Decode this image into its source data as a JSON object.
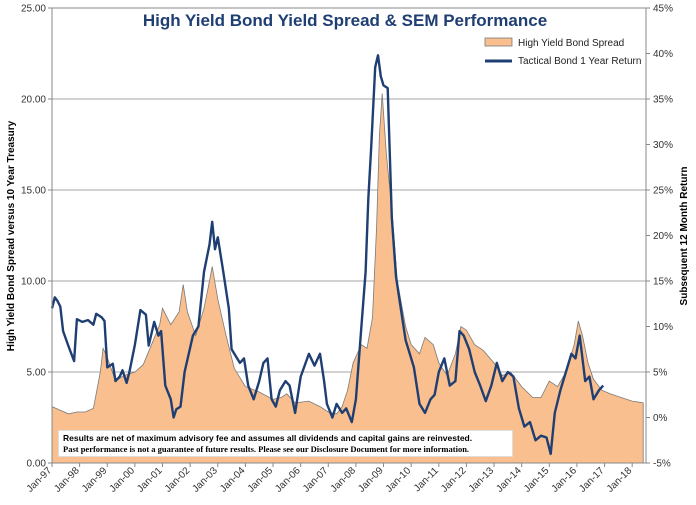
{
  "chart_data": {
    "type": "area+line",
    "title": "High Yield Bond Yield Spread & SEM Performance",
    "ylabel_left": "High Yield Bond Spread versus 10 Year Treasury",
    "ylabel_right": "Subsequent 12 Month Return",
    "ylim_left": [
      0,
      25
    ],
    "ylim_right": [
      -5,
      45
    ],
    "left_ticks": [
      "0.00",
      "5.00",
      "10.00",
      "15.00",
      "20.00",
      "25.00"
    ],
    "right_ticks": [
      "-5%",
      "0%",
      "5%",
      "10%",
      "15%",
      "20%",
      "25%",
      "30%",
      "35%",
      "40%",
      "45%"
    ],
    "x_ticks": [
      "Jan-97",
      "Jan-98",
      "Jan-99",
      "Jan-00",
      "Jan-01",
      "Jan-02",
      "Jan-03",
      "Jan-04",
      "Jan-05",
      "Jan-06",
      "Jan-07",
      "Jan-08",
      "Jan-09",
      "Jan-10",
      "Jan-11",
      "Jan-12",
      "Jan-13",
      "Jan-14",
      "Jan-15",
      "Jan-16",
      "Jan-17",
      "Jan-18"
    ],
    "x_range": [
      1997.0,
      2018.5
    ],
    "legend_position": "top-right",
    "series": [
      {
        "name": "High Yield Bond Spread",
        "kind": "area",
        "axis": "left",
        "color": "#f9bf8f",
        "edge_color": "#7a7a7a",
        "points": [
          [
            1997.0,
            3.1
          ],
          [
            1997.3,
            2.9
          ],
          [
            1997.6,
            2.7
          ],
          [
            1997.9,
            2.8
          ],
          [
            1998.2,
            2.8
          ],
          [
            1998.5,
            3.0
          ],
          [
            1998.75,
            5.0
          ],
          [
            1998.85,
            6.3
          ],
          [
            1999.0,
            5.8
          ],
          [
            1999.3,
            4.5
          ],
          [
            1999.6,
            4.8
          ],
          [
            2000.0,
            5.0
          ],
          [
            2000.3,
            5.4
          ],
          [
            2000.6,
            6.5
          ],
          [
            2000.9,
            7.6
          ],
          [
            2001.0,
            8.5
          ],
          [
            2001.3,
            7.6
          ],
          [
            2001.6,
            8.3
          ],
          [
            2001.75,
            9.8
          ],
          [
            2001.9,
            8.3
          ],
          [
            2002.2,
            7.0
          ],
          [
            2002.5,
            8.5
          ],
          [
            2002.7,
            10.0
          ],
          [
            2002.8,
            10.8
          ],
          [
            2003.0,
            9.0
          ],
          [
            2003.3,
            7.0
          ],
          [
            2003.6,
            5.2
          ],
          [
            2004.0,
            4.2
          ],
          [
            2004.5,
            3.9
          ],
          [
            2005.0,
            3.5
          ],
          [
            2005.3,
            3.6
          ],
          [
            2005.5,
            3.8
          ],
          [
            2005.8,
            3.3
          ],
          [
            2006.3,
            3.4
          ],
          [
            2006.7,
            3.1
          ],
          [
            2007.0,
            2.8
          ],
          [
            2007.3,
            2.7
          ],
          [
            2007.5,
            3.1
          ],
          [
            2007.7,
            4.0
          ],
          [
            2007.9,
            5.5
          ],
          [
            2008.2,
            6.5
          ],
          [
            2008.4,
            6.3
          ],
          [
            2008.6,
            8.0
          ],
          [
            2008.75,
            13.0
          ],
          [
            2008.85,
            18.0
          ],
          [
            2008.95,
            20.3
          ],
          [
            2009.1,
            17.0
          ],
          [
            2009.3,
            14.0
          ],
          [
            2009.5,
            10.0
          ],
          [
            2009.8,
            7.5
          ],
          [
            2010.0,
            6.5
          ],
          [
            2010.3,
            6.0
          ],
          [
            2010.5,
            6.9
          ],
          [
            2010.8,
            6.5
          ],
          [
            2011.0,
            5.5
          ],
          [
            2011.3,
            4.8
          ],
          [
            2011.6,
            6.0
          ],
          [
            2011.8,
            7.5
          ],
          [
            2012.0,
            7.3
          ],
          [
            2012.3,
            6.5
          ],
          [
            2012.6,
            6.2
          ],
          [
            2013.0,
            5.5
          ],
          [
            2013.3,
            4.8
          ],
          [
            2013.6,
            5.0
          ],
          [
            2014.0,
            4.2
          ],
          [
            2014.4,
            3.6
          ],
          [
            2014.7,
            3.6
          ],
          [
            2015.0,
            4.5
          ],
          [
            2015.3,
            4.2
          ],
          [
            2015.6,
            5.0
          ],
          [
            2015.9,
            6.5
          ],
          [
            2016.05,
            7.8
          ],
          [
            2016.2,
            7.0
          ],
          [
            2016.4,
            5.5
          ],
          [
            2016.6,
            4.6
          ],
          [
            2016.9,
            4.0
          ],
          [
            2017.2,
            3.8
          ],
          [
            2017.6,
            3.6
          ],
          [
            2018.0,
            3.4
          ],
          [
            2018.4,
            3.3
          ]
        ]
      },
      {
        "name": "Tactical Bond 1 Year Return",
        "kind": "line",
        "axis": "right",
        "color": "#1f3f73",
        "points": [
          [
            1997.0,
            12.0
          ],
          [
            1997.1,
            13.2
          ],
          [
            1997.2,
            12.8
          ],
          [
            1997.3,
            12.2
          ],
          [
            1997.4,
            9.5
          ],
          [
            1997.6,
            7.8
          ],
          [
            1997.8,
            6.2
          ],
          [
            1997.9,
            10.8
          ],
          [
            1998.1,
            10.5
          ],
          [
            1998.3,
            10.7
          ],
          [
            1998.5,
            10.2
          ],
          [
            1998.6,
            11.4
          ],
          [
            1998.8,
            11.0
          ],
          [
            1998.9,
            10.6
          ],
          [
            1999.0,
            5.5
          ],
          [
            1999.2,
            5.9
          ],
          [
            1999.3,
            4.0
          ],
          [
            1999.45,
            4.5
          ],
          [
            1999.55,
            5.2
          ],
          [
            1999.7,
            3.8
          ],
          [
            1999.8,
            5.0
          ],
          [
            2000.0,
            8.0
          ],
          [
            2000.2,
            11.8
          ],
          [
            2000.4,
            11.3
          ],
          [
            2000.5,
            7.9
          ],
          [
            2000.7,
            10.5
          ],
          [
            2000.85,
            9.0
          ],
          [
            2000.95,
            9.5
          ],
          [
            2001.1,
            3.5
          ],
          [
            2001.3,
            2.0
          ],
          [
            2001.4,
            0.0
          ],
          [
            2001.5,
            0.9
          ],
          [
            2001.65,
            1.2
          ],
          [
            2001.8,
            5.0
          ],
          [
            2002.1,
            9.0
          ],
          [
            2002.3,
            10.0
          ],
          [
            2002.5,
            16.0
          ],
          [
            2002.7,
            19.0
          ],
          [
            2002.8,
            21.5
          ],
          [
            2002.9,
            18.5
          ],
          [
            2003.0,
            19.8
          ],
          [
            2003.2,
            16.0
          ],
          [
            2003.4,
            12.0
          ],
          [
            2003.5,
            7.5
          ],
          [
            2003.8,
            6.0
          ],
          [
            2003.95,
            6.5
          ],
          [
            2004.1,
            3.5
          ],
          [
            2004.3,
            2.0
          ],
          [
            2004.5,
            4.0
          ],
          [
            2004.65,
            6.0
          ],
          [
            2004.8,
            6.5
          ],
          [
            2004.95,
            2.0
          ],
          [
            2005.1,
            1.2
          ],
          [
            2005.25,
            3.0
          ],
          [
            2005.45,
            4.0
          ],
          [
            2005.6,
            3.5
          ],
          [
            2005.8,
            0.5
          ],
          [
            2006.0,
            4.5
          ],
          [
            2006.3,
            7.0
          ],
          [
            2006.5,
            5.7
          ],
          [
            2006.7,
            7.0
          ],
          [
            2006.85,
            4.0
          ],
          [
            2006.95,
            1.5
          ],
          [
            2007.15,
            0.0
          ],
          [
            2007.3,
            1.5
          ],
          [
            2007.5,
            0.5
          ],
          [
            2007.65,
            1.0
          ],
          [
            2007.85,
            -0.5
          ],
          [
            2008.0,
            2.0
          ],
          [
            2008.2,
            10.0
          ],
          [
            2008.35,
            16.0
          ],
          [
            2008.45,
            24.0
          ],
          [
            2008.55,
            29.5
          ],
          [
            2008.7,
            38.5
          ],
          [
            2008.8,
            39.8
          ],
          [
            2008.9,
            37.5
          ],
          [
            2009.0,
            36.5
          ],
          [
            2009.15,
            36.2
          ],
          [
            2009.3,
            22.0
          ],
          [
            2009.45,
            15.5
          ],
          [
            2009.6,
            12.5
          ],
          [
            2009.8,
            8.5
          ],
          [
            2009.95,
            7.0
          ],
          [
            2010.1,
            5.5
          ],
          [
            2010.3,
            1.5
          ],
          [
            2010.5,
            0.5
          ],
          [
            2010.7,
            2.0
          ],
          [
            2010.85,
            2.5
          ],
          [
            2011.0,
            5.0
          ],
          [
            2011.2,
            6.5
          ],
          [
            2011.4,
            3.5
          ],
          [
            2011.6,
            4.0
          ],
          [
            2011.75,
            9.5
          ],
          [
            2011.9,
            9.0
          ],
          [
            2012.1,
            7.5
          ],
          [
            2012.3,
            5.0
          ],
          [
            2012.5,
            3.5
          ],
          [
            2012.7,
            1.8
          ],
          [
            2012.9,
            3.5
          ],
          [
            2013.1,
            6.0
          ],
          [
            2013.3,
            4.0
          ],
          [
            2013.5,
            5.0
          ],
          [
            2013.7,
            4.5
          ],
          [
            2013.9,
            1.0
          ],
          [
            2014.1,
            -1.0
          ],
          [
            2014.3,
            -0.5
          ],
          [
            2014.5,
            -2.5
          ],
          [
            2014.7,
            -2.0
          ],
          [
            2014.9,
            -2.2
          ],
          [
            2015.05,
            -4.0
          ],
          [
            2015.2,
            0.5
          ],
          [
            2015.4,
            3.0
          ],
          [
            2015.6,
            5.0
          ],
          [
            2015.8,
            7.0
          ],
          [
            2015.95,
            6.5
          ],
          [
            2016.1,
            9.0
          ],
          [
            2016.3,
            4.0
          ],
          [
            2016.45,
            4.5
          ],
          [
            2016.6,
            2.0
          ],
          [
            2016.8,
            3.0
          ],
          [
            2016.95,
            3.5
          ]
        ]
      }
    ]
  },
  "note": {
    "line1": "Results are net of maximum advisory fee and assumes all dividends and capital gains are reinvested.",
    "line2": "Past performance is not a guarantee of future results.  Please see our Disclosure Document for more information."
  }
}
